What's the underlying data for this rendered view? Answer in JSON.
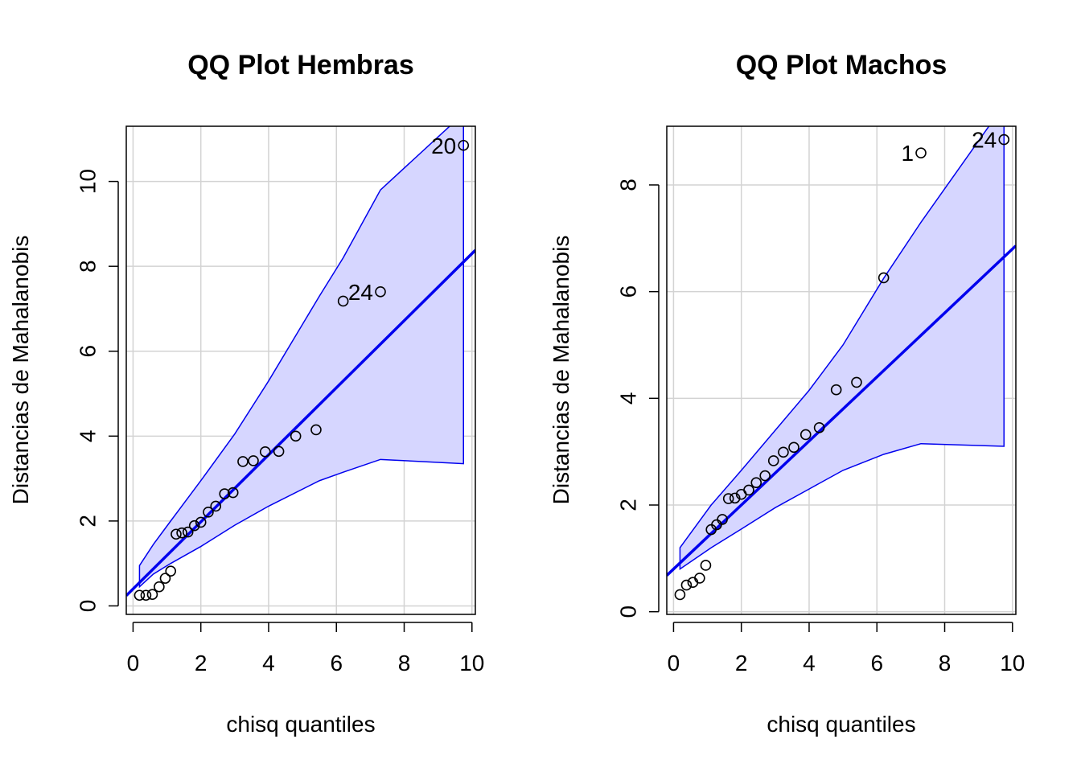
{
  "chart_data": [
    {
      "type": "scatter",
      "title": "QQ Plot Hembras",
      "xlabel": "chisq quantiles",
      "ylabel": "Distancias de Mahalanobis",
      "xlim": [
        -0.2,
        10.1
      ],
      "ylim": [
        -0.2,
        11.3
      ],
      "xticks": [
        0,
        2,
        4,
        6,
        8,
        10
      ],
      "yticks": [
        0,
        2,
        4,
        6,
        8,
        10
      ],
      "grid": true,
      "colors": {
        "band": "#d6d6ff",
        "line": "#0000ee",
        "grid": "#d3d3d3"
      },
      "points": {
        "x": [
          0.19,
          0.38,
          0.57,
          0.77,
          0.95,
          1.11,
          1.27,
          1.44,
          1.62,
          1.81,
          2.0,
          2.22,
          2.44,
          2.7,
          2.95,
          3.24,
          3.55,
          3.9,
          4.3,
          4.8,
          5.4,
          6.2,
          7.3,
          9.75
        ],
        "y": [
          0.25,
          0.25,
          0.27,
          0.45,
          0.65,
          0.82,
          1.69,
          1.72,
          1.74,
          1.89,
          1.97,
          2.21,
          2.35,
          2.64,
          2.67,
          3.4,
          3.42,
          3.63,
          3.64,
          4.0,
          4.15,
          7.18,
          7.4,
          10.85
        ]
      },
      "reference_line": {
        "intercept": 0.4,
        "slope": 0.79
      },
      "band": {
        "x": [
          0.19,
          0.6,
          1.11,
          2.0,
          3.0,
          4.0,
          5.5,
          6.2,
          7.3,
          9.75
        ],
        "upper": [
          0.95,
          1.45,
          2.0,
          2.95,
          4.05,
          5.3,
          7.3,
          8.2,
          9.8,
          11.6
        ],
        "lower": [
          0.45,
          0.75,
          1.0,
          1.4,
          1.9,
          2.35,
          2.95,
          3.15,
          3.45,
          3.35
        ]
      },
      "labels": [
        {
          "text": "24",
          "x": 7.3,
          "y": 7.4
        },
        {
          "text": "20",
          "x": 9.75,
          "y": 10.85
        }
      ]
    },
    {
      "type": "scatter",
      "title": "QQ Plot Machos",
      "xlabel": "chisq quantiles",
      "ylabel": "Distancias de Mahalanobis",
      "xlim": [
        -0.2,
        10.1
      ],
      "ylim": [
        -0.05,
        9.1
      ],
      "xticks": [
        0,
        2,
        4,
        6,
        8,
        10
      ],
      "yticks": [
        0,
        2,
        4,
        6,
        8
      ],
      "grid": true,
      "colors": {
        "band": "#d6d6ff",
        "line": "#0000ee",
        "grid": "#d3d3d3"
      },
      "points": {
        "x": [
          0.19,
          0.38,
          0.57,
          0.77,
          0.95,
          1.11,
          1.27,
          1.44,
          1.62,
          1.81,
          2.0,
          2.22,
          2.44,
          2.7,
          2.95,
          3.24,
          3.55,
          3.9,
          4.3,
          4.8,
          5.4,
          6.2,
          7.3,
          9.75
        ],
        "y": [
          0.32,
          0.5,
          0.55,
          0.63,
          0.87,
          1.54,
          1.63,
          1.73,
          2.12,
          2.13,
          2.2,
          2.28,
          2.42,
          2.55,
          2.83,
          2.99,
          3.08,
          3.32,
          3.45,
          4.16,
          4.3,
          6.26,
          8.6,
          8.85
        ]
      },
      "reference_line": {
        "intercept": 0.8,
        "slope": 0.6
      },
      "band": {
        "x": [
          0.19,
          1.11,
          2.0,
          3.0,
          4.0,
          5.0,
          6.2,
          7.3,
          9.75
        ],
        "upper": [
          1.2,
          2.0,
          2.65,
          3.4,
          4.15,
          5.0,
          6.25,
          7.3,
          9.5
        ],
        "lower": [
          0.8,
          1.2,
          1.55,
          1.95,
          2.3,
          2.65,
          2.95,
          3.15,
          3.1
        ]
      },
      "labels": [
        {
          "text": "1",
          "x": 7.3,
          "y": 8.6
        },
        {
          "text": "24",
          "x": 9.75,
          "y": 8.85
        }
      ]
    }
  ]
}
